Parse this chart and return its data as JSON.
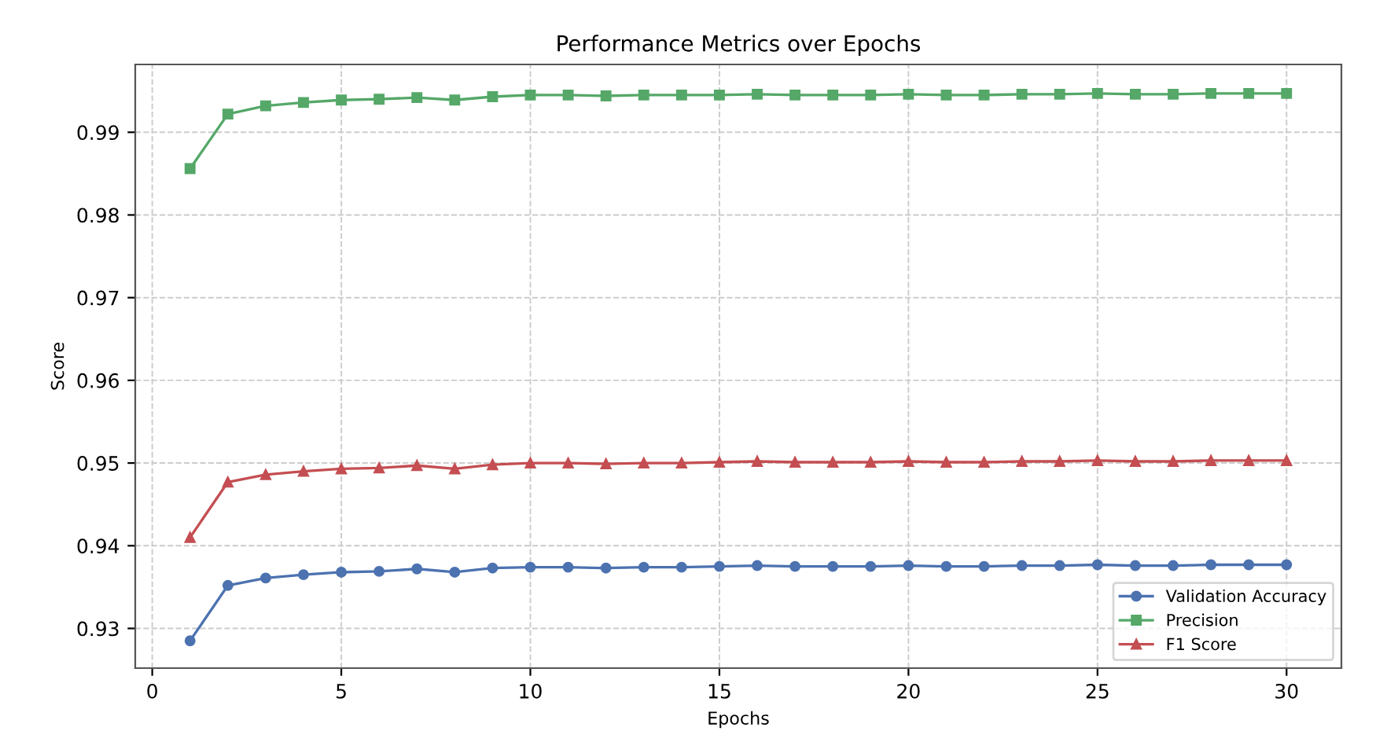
{
  "chart_data": {
    "type": "line",
    "title": "Performance Metrics over Epochs",
    "xlabel": "Epochs",
    "ylabel": "Score",
    "x": [
      1,
      2,
      3,
      4,
      5,
      6,
      7,
      8,
      9,
      10,
      11,
      12,
      13,
      14,
      15,
      16,
      17,
      18,
      19,
      20,
      21,
      22,
      23,
      24,
      25,
      26,
      27,
      28,
      29,
      30
    ],
    "series": [
      {
        "name": "Validation Accuracy",
        "color": "#4c72b0",
        "marker": "circle",
        "values": [
          0.9285,
          0.9352,
          0.9361,
          0.9365,
          0.9368,
          0.9369,
          0.9372,
          0.9368,
          0.9373,
          0.9374,
          0.9374,
          0.9373,
          0.9374,
          0.9374,
          0.9375,
          0.9376,
          0.9375,
          0.9375,
          0.9375,
          0.9376,
          0.9375,
          0.9375,
          0.9376,
          0.9376,
          0.9377,
          0.9376,
          0.9376,
          0.9377,
          0.9377,
          0.9377
        ]
      },
      {
        "name": "Precision",
        "color": "#55a868",
        "marker": "square",
        "values": [
          0.9856,
          0.9922,
          0.9932,
          0.9936,
          0.9939,
          0.994,
          0.9942,
          0.9939,
          0.9943,
          0.9945,
          0.9945,
          0.9944,
          0.9945,
          0.9945,
          0.9945,
          0.9946,
          0.9945,
          0.9945,
          0.9945,
          0.9946,
          0.9945,
          0.9945,
          0.9946,
          0.9946,
          0.9947,
          0.9946,
          0.9946,
          0.9947,
          0.9947,
          0.9947
        ]
      },
      {
        "name": "F1 Score",
        "color": "#c44e52",
        "marker": "triangle",
        "values": [
          0.941,
          0.9477,
          0.9486,
          0.949,
          0.9493,
          0.9494,
          0.9497,
          0.9493,
          0.9498,
          0.95,
          0.95,
          0.9499,
          0.95,
          0.95,
          0.9501,
          0.9502,
          0.9501,
          0.9501,
          0.9501,
          0.9502,
          0.9501,
          0.9501,
          0.9502,
          0.9502,
          0.9503,
          0.9502,
          0.9502,
          0.9503,
          0.9503,
          0.9503
        ]
      }
    ],
    "xlim": [
      -0.45,
      31.45
    ],
    "xticks": [
      0,
      5,
      10,
      15,
      20,
      25,
      30
    ],
    "ylim": [
      0.9252,
      0.9982
    ],
    "yticks": [
      0.93,
      0.94,
      0.95,
      0.96,
      0.97,
      0.98,
      0.99
    ],
    "grid": true,
    "line_style": "solid",
    "legend": "lower right"
  }
}
